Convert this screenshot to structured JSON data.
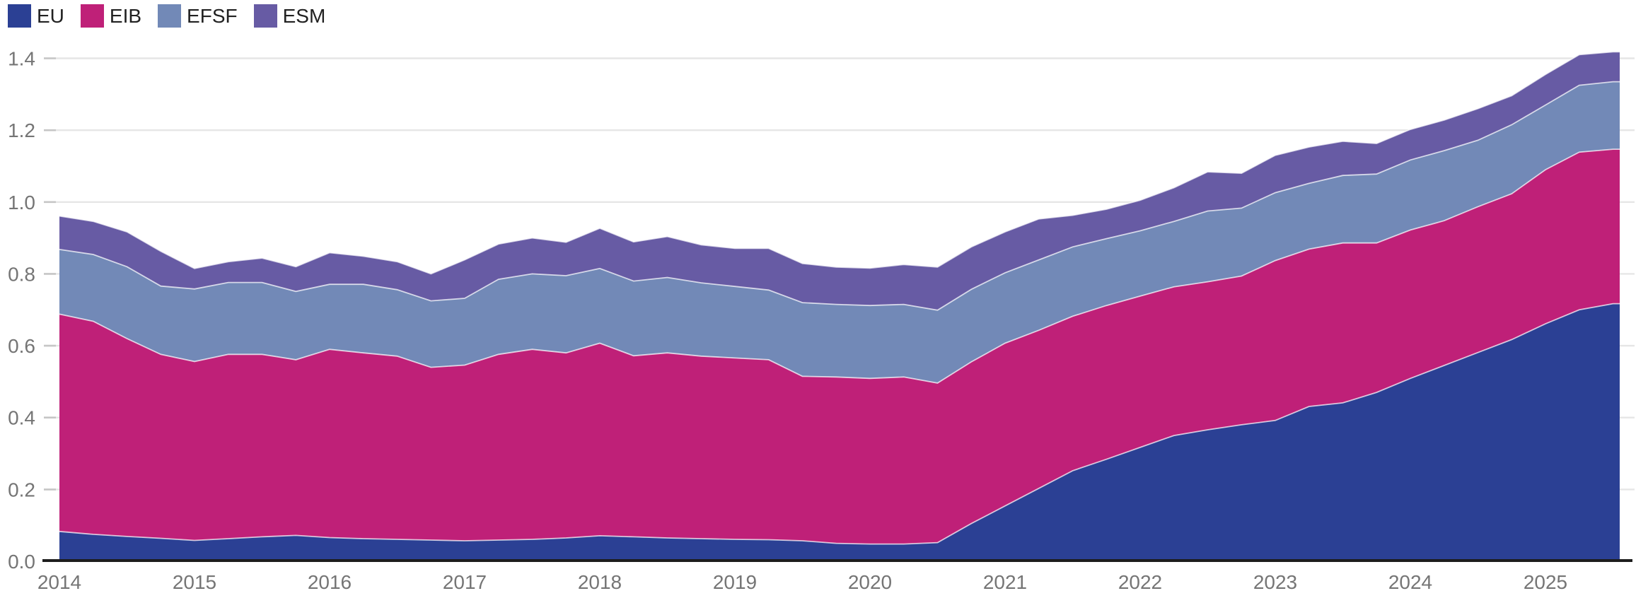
{
  "page": {
    "background": "#ffffff"
  },
  "legend": {
    "items": [
      {
        "label": "EU",
        "color": "#2b4094"
      },
      {
        "label": "EIB",
        "color": "#bf2078"
      },
      {
        "label": "EFSF",
        "color": "#7289b7"
      },
      {
        "label": "ESM",
        "color": "#675ba4"
      }
    ]
  },
  "axes": {
    "y_tick_labels": [
      "0.0",
      "0.2",
      "0.4",
      "0.6",
      "0.8",
      "1.0",
      "1.2",
      "1.4"
    ],
    "x_tick_labels": [
      "2014",
      "2015",
      "2016",
      "2017",
      "2018",
      "2019",
      "2020",
      "2021",
      "2022",
      "2023",
      "2024",
      "2025"
    ],
    "tick_label_color": "#757575",
    "gridline_color": "#e6e6e6",
    "tick_stub_color": "#c6c6c6",
    "axis_line_color": "#1d1d1d"
  },
  "chart_data": {
    "type": "area",
    "stacked": true,
    "title": "",
    "xlabel": "",
    "ylabel": "",
    "grid": true,
    "legend_position": "top-left",
    "xlim": [
      2014,
      2025.57
    ],
    "ylim": [
      0,
      1.46
    ],
    "y_ticks": [
      0.0,
      0.2,
      0.4,
      0.6,
      0.8,
      1.0,
      1.2,
      1.4
    ],
    "x_ticks": [
      2014,
      2015,
      2016,
      2017,
      2018,
      2019,
      2020,
      2021,
      2022,
      2023,
      2024,
      2025
    ],
    "x": [
      2014.0,
      2014.25,
      2014.5,
      2014.75,
      2015.0,
      2015.25,
      2015.5,
      2015.75,
      2016.0,
      2016.25,
      2016.5,
      2016.75,
      2017.0,
      2017.25,
      2017.5,
      2017.75,
      2018.0,
      2018.25,
      2018.5,
      2018.75,
      2019.0,
      2019.25,
      2019.5,
      2019.75,
      2020.0,
      2020.25,
      2020.5,
      2020.75,
      2021.0,
      2021.25,
      2021.5,
      2021.75,
      2022.0,
      2022.25,
      2022.5,
      2022.75,
      2023.0,
      2023.25,
      2023.5,
      2023.75,
      2024.0,
      2024.25,
      2024.5,
      2024.75,
      2025.0,
      2025.25,
      2025.5,
      2025.55
    ],
    "series": [
      {
        "name": "EU",
        "color": "#2b4094",
        "values": [
          0.083,
          0.075,
          0.069,
          0.064,
          0.058,
          0.063,
          0.068,
          0.072,
          0.066,
          0.063,
          0.061,
          0.059,
          0.057,
          0.059,
          0.061,
          0.065,
          0.071,
          0.068,
          0.065,
          0.063,
          0.061,
          0.06,
          0.057,
          0.05,
          0.048,
          0.048,
          0.052,
          0.105,
          0.154,
          0.203,
          0.252,
          0.284,
          0.317,
          0.35,
          0.366,
          0.38,
          0.392,
          0.431,
          0.441,
          0.47,
          0.509,
          0.545,
          0.581,
          0.617,
          0.661,
          0.7,
          0.717,
          0.717
        ]
      },
      {
        "name": "EIB",
        "color": "#bf2078",
        "values": [
          0.605,
          0.593,
          0.551,
          0.512,
          0.498,
          0.513,
          0.508,
          0.489,
          0.524,
          0.517,
          0.51,
          0.481,
          0.489,
          0.517,
          0.529,
          0.515,
          0.536,
          0.504,
          0.515,
          0.508,
          0.505,
          0.501,
          0.458,
          0.463,
          0.461,
          0.465,
          0.444,
          0.45,
          0.453,
          0.44,
          0.43,
          0.428,
          0.421,
          0.414,
          0.412,
          0.414,
          0.445,
          0.438,
          0.445,
          0.416,
          0.413,
          0.403,
          0.406,
          0.406,
          0.429,
          0.439,
          0.43,
          0.43
        ]
      },
      {
        "name": "EFSF",
        "color": "#7289b7",
        "values": [
          0.18,
          0.186,
          0.2,
          0.19,
          0.202,
          0.2,
          0.2,
          0.19,
          0.181,
          0.191,
          0.185,
          0.185,
          0.186,
          0.209,
          0.21,
          0.215,
          0.208,
          0.208,
          0.21,
          0.204,
          0.199,
          0.194,
          0.205,
          0.202,
          0.203,
          0.202,
          0.203,
          0.202,
          0.196,
          0.196,
          0.193,
          0.186,
          0.182,
          0.182,
          0.197,
          0.189,
          0.189,
          0.183,
          0.188,
          0.192,
          0.195,
          0.195,
          0.185,
          0.192,
          0.18,
          0.186,
          0.188,
          0.188
        ]
      },
      {
        "name": "ESM",
        "color": "#675ba4",
        "values": [
          0.093,
          0.092,
          0.097,
          0.097,
          0.057,
          0.058,
          0.068,
          0.069,
          0.088,
          0.078,
          0.078,
          0.075,
          0.107,
          0.098,
          0.1,
          0.093,
          0.112,
          0.109,
          0.114,
          0.106,
          0.106,
          0.116,
          0.109,
          0.104,
          0.104,
          0.111,
          0.12,
          0.118,
          0.114,
          0.114,
          0.088,
          0.082,
          0.085,
          0.094,
          0.109,
          0.097,
          0.104,
          0.101,
          0.095,
          0.085,
          0.085,
          0.085,
          0.088,
          0.081,
          0.085,
          0.085,
          0.083,
          0.083
        ]
      }
    ]
  }
}
